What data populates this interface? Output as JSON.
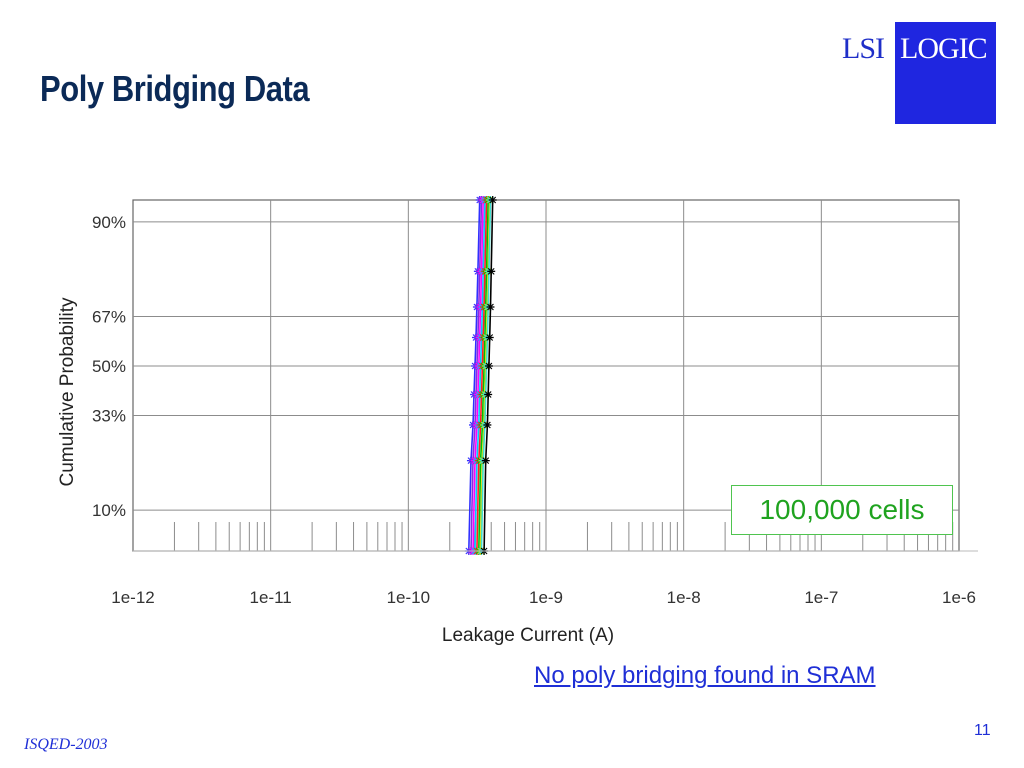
{
  "slide": {
    "title": "Poly Bridging Data",
    "logo_left": "LSI",
    "logo_right": "LOGIC",
    "callout": "100,000 cells",
    "finding": "No poly bridging found in SRAM",
    "page_number": "11",
    "footer": "ISQED-2003",
    "colors": {
      "title": "#0b2a57",
      "link": "#1f2fd6",
      "logo_box": "#1f26e0",
      "callout_text": "#1fa31f",
      "callout_border": "#4fc44f"
    }
  },
  "chart_data": {
    "type": "line",
    "xlabel": "Leakage Current (A)",
    "ylabel": "Cumulative Probability",
    "x_scale": "log",
    "x_ticks": [
      1e-12,
      1e-11,
      1e-10,
      1e-09,
      1e-08,
      1e-07,
      1e-06
    ],
    "x_tick_labels": [
      "1e-12",
      "1e-11",
      "1e-10",
      "1e-9",
      "1e-8",
      "1e-7",
      "1e-6"
    ],
    "xlim": [
      1e-12,
      1e-06
    ],
    "y_scale": "normal-probability",
    "y_ticks": [
      0.1,
      0.33,
      0.5,
      0.67,
      0.9
    ],
    "y_tick_labels": [
      "10%",
      "33%",
      "50%",
      "67%",
      "90%"
    ],
    "ylim": [
      0.05,
      0.93
    ],
    "grid": true,
    "probabilities": [
      0.05,
      0.2,
      0.3,
      0.4,
      0.5,
      0.6,
      0.7,
      0.8,
      0.93
    ],
    "series": [
      {
        "color": "#3030ff",
        "x": [
          2.75e-10,
          2.85e-10,
          2.95e-10,
          3e-10,
          3.05e-10,
          3.1e-10,
          3.15e-10,
          3.2e-10,
          3.3e-10
        ]
      },
      {
        "color": "#8a2be2",
        "x": [
          2.85e-10,
          2.95e-10,
          3.05e-10,
          3.1e-10,
          3.15e-10,
          3.2e-10,
          3.25e-10,
          3.3e-10,
          3.4e-10
        ]
      },
      {
        "color": "#ff00ff",
        "x": [
          2.95e-10,
          3.05e-10,
          3.15e-10,
          3.2e-10,
          3.25e-10,
          3.3e-10,
          3.35e-10,
          3.4e-10,
          3.5e-10
        ]
      },
      {
        "color": "#00c8ff",
        "x": [
          3.05e-10,
          3.15e-10,
          3.25e-10,
          3.3e-10,
          3.35e-10,
          3.4e-10,
          3.45e-10,
          3.5e-10,
          3.6e-10
        ]
      },
      {
        "color": "#ff2020",
        "x": [
          3.15e-10,
          3.25e-10,
          3.35e-10,
          3.4e-10,
          3.45e-10,
          3.5e-10,
          3.55e-10,
          3.6e-10,
          3.7e-10
        ]
      },
      {
        "color": "#00c000",
        "x": [
          3.25e-10,
          3.35e-10,
          3.45e-10,
          3.5e-10,
          3.55e-10,
          3.6e-10,
          3.65e-10,
          3.7e-10,
          3.8e-10
        ]
      },
      {
        "color": "#d8d800",
        "x": [
          3.35e-10,
          3.45e-10,
          3.55e-10,
          3.6e-10,
          3.65e-10,
          3.7e-10,
          3.75e-10,
          3.8e-10,
          3.9e-10
        ]
      },
      {
        "color": "#40e0d0",
        "x": [
          3.4e-10,
          3.5e-10,
          3.6e-10,
          3.65e-10,
          3.7e-10,
          3.75e-10,
          3.8e-10,
          3.85e-10,
          3.95e-10
        ]
      },
      {
        "color": "#000000",
        "x": [
          3.55e-10,
          3.65e-10,
          3.75e-10,
          3.8e-10,
          3.85e-10,
          3.9e-10,
          3.95e-10,
          4e-10,
          4.1e-10
        ]
      }
    ]
  }
}
